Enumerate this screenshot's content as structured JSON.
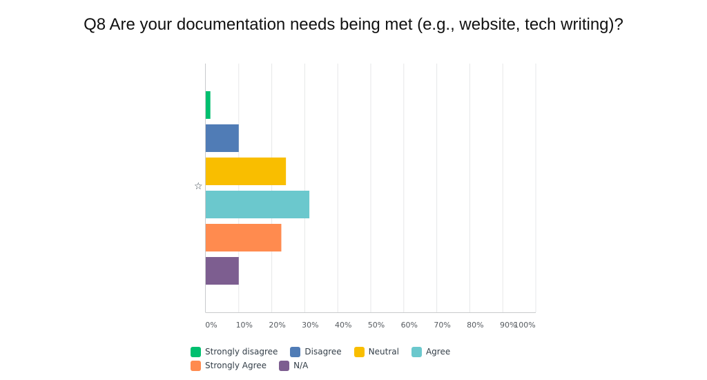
{
  "title": "Q8 Are your documentation needs being met (e.g., website, tech writing)?",
  "chart_data": {
    "type": "bar",
    "orientation": "horizontal",
    "title": "Q8 Are your documentation needs being met (e.g., website, tech writing)?",
    "categories": [
      "Strongly disagree",
      "Disagree",
      "Neutral",
      "Agree",
      "Strongly Agree",
      "N/A"
    ],
    "values": [
      1.4,
      10,
      24.3,
      31.4,
      22.9,
      10
    ],
    "colors": [
      "#00bf6f",
      "#507cb6",
      "#f9be00",
      "#6bc8cd",
      "#ff8b4f",
      "#7d5e90"
    ],
    "xlim": [
      0,
      100
    ],
    "x_ticks": [
      "0%",
      "10%",
      "20%",
      "30%",
      "40%",
      "50%",
      "60%",
      "70%",
      "80%",
      "90%",
      "100%"
    ],
    "grid": true,
    "legend_position": "bottom",
    "star_icon": "star-outline-icon"
  },
  "legend": {
    "rows": [
      [
        {
          "label": "Strongly disagree",
          "color": "#00bf6f"
        },
        {
          "label": "Disagree",
          "color": "#507cb6"
        },
        {
          "label": "Neutral",
          "color": "#f9be00"
        },
        {
          "label": "Agree",
          "color": "#6bc8cd"
        }
      ],
      [
        {
          "label": "Strongly Agree",
          "color": "#ff8b4f"
        },
        {
          "label": "N/A",
          "color": "#7d5e90"
        }
      ]
    ]
  }
}
